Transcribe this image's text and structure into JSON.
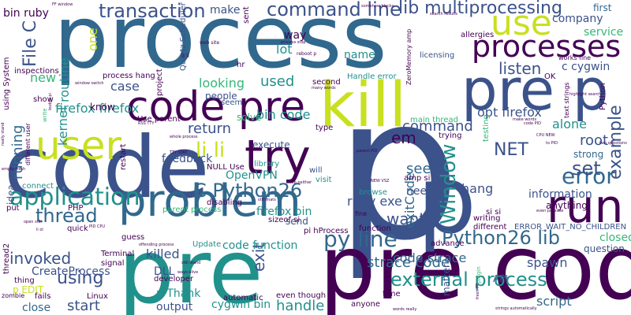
{
  "palette": {
    "dark_purple": "#440154",
    "indigo": "#3b528b",
    "steel_blue": "#31688e",
    "teal": "#21918c",
    "green": "#35b779",
    "light_green": "#5ec962",
    "lime": "#90d743",
    "yellow": "#c8e020"
  },
  "words": {
    "p_big": "p",
    "p_small": "p",
    "pre_code_br": "pre code",
    "pre_bottom": "pre",
    "process": "process",
    "code_left": "code",
    "problem": "problem",
    "run": "run",
    "kill": "kill",
    "pre_p": "pre p",
    "code_pre": "code pre",
    "user": "user",
    "try": "try",
    "processes": "processes",
    "use": "use",
    "error": "error",
    "application": "application",
    "python26_lib": "Python26 lib",
    "c_python26": "C Python26",
    "external_process": "external process",
    "transaction": "transaction",
    "command_line": "command line",
    "lib_multiprocessing": "lib multiprocessing",
    "li_li": "li li",
    "py_line": "py line",
    "strace_code": "strace code",
    "thread": "thread",
    "window": "Window",
    "listen": "listen",
    "set": "set",
    "example": "example",
    "root": "root",
    "file_c": "File C",
    "opt_firefox": "opt firefox",
    "firefox_firefox": "firefox firefox",
    "bin_code": "bin code",
    "command": "command",
    "em": "em",
    "using": "using",
    "invoked": "invoked",
    "handle": "handle",
    "script": "script",
    "closed": "closed",
    "killed": "killed",
    "start": "start",
    "net": "NET",
    "spawn": "spawn",
    "want": "want",
    "used": "used",
    "return": "return",
    "ruby_exe": "ruby exe",
    "firefox_bin": "firefox bin",
    "code_strace": "code strace",
    "kernel": "kernel",
    "routine": "routine",
    "running": "running",
    "new": "new",
    "case": "case",
    "looking": "looking",
    "alone": "alone",
    "c_cygwin": "c cygwin",
    "company": "company",
    "service": "service",
    "make": "make",
    "name": "name",
    "lot": "lot",
    "way": "way",
    "exit": "exit",
    "exitcode": "exitCode",
    "hang": "hang",
    "see": "see",
    "need": "need",
    "code_function": "code function",
    "createprocess": "CreateProcess",
    "bin_ruby": "bin ruby",
    "process_hang": "process hang",
    "one": "one",
    "information": "information",
    "question": "question",
    "anything": "anything",
    "error_wait": "ERROR_WAIT_NO_CHILDREN",
    "quartz_scheduler": "Quartz Scheduler",
    "dll": "DLL",
    "p_thank": "p Thank",
    "output": "output",
    "cygwin_bin": "cygwin bin",
    "openvpn": "OpenVPN",
    "feedback": "feedback",
    "execute": "execute",
    "solve": "solve",
    "people": "people",
    "seem": "seem",
    "know": "know",
    "show": "show",
    "idea": "idea",
    "put": "put",
    "quick": "quick",
    "guess": "guess",
    "terminal": "Terminal",
    "signal": "signal",
    "thing": "thing",
    "p_edit": "p EDIT",
    "close": "close",
    "fails": "fails",
    "linux": "Linux",
    "developer": "developer",
    "update": "Update",
    "automatic": "automatic",
    "even_though": "even though",
    "time": "time",
    "anyone": "anyone",
    "writing": "writing",
    "different": "different",
    "advance": "advance",
    "api": "API",
    "ok": "OK",
    "python": "Python",
    "handle_error": "Handle error",
    "main_thread": "main thread",
    "trying": "trying",
    "testing": "testing",
    "strong": "strong",
    "first": "first",
    "licensing": "licensing",
    "allergies": "allergies",
    "works_fine": "works fine",
    "text_strings": "text strings",
    "second": "second",
    "will": "will",
    "visit": "visit",
    "library": "library",
    "disabling": "disabling",
    "sizeof_si": "sizeof si",
    "send": "send",
    "function": "function",
    "pi_hprocess": "pi hProcess",
    "use_parent": "Use parent",
    "null_use": "NULL Use",
    "restart": "restart",
    "parent_process": "parent process",
    "hr": "hr",
    "project": "project",
    "sent": "sent",
    "inspections": "inspections",
    "using_system": "using System",
    "different_user": "different user",
    "php": "PHP",
    "thread2": "thread2",
    "zombie": "zombie",
    "matter": "matter",
    "amp_si": "amp si",
    "si_si": "si si",
    "type": "type",
    "fine": "fine",
    "browse": "browse",
    "zeromemory_amp": "ZeroMemory amp",
    "connect": "connect",
    "ttl_li": "li li",
    "ttl_rss": "RSS TTY",
    "ttl_words": "many words",
    "ttl_parent_pid": "parent PID",
    "ttl_reboot": "reboot p",
    "ttl_somehow": "somehow blocks",
    "ttl_search": "search results",
    "ttl_web": "web site",
    "ttl_empty": "empty fresh",
    "ttl_pid_cpu": "PID CPU",
    "ttl_strings": "strings automatically",
    "ttl_words_really": "words really",
    "ttl_make_words": "make words",
    "ttl_two_questions": "two questions",
    "ttl_even_possible": "even possible",
    "ttl_highlight": "highlight search",
    "ttl_still": "still stand",
    "ttl_whole": "whole process",
    "ttl_process_stop": "process stop",
    "ttl_tty_stat": "TTY STAT",
    "ttl_new_vsz": "NEW VSZ",
    "ttl_cpu_new": "CPU NEW",
    "ttl_code_pid": "code PID",
    "ttl_window_switch": "window switch",
    "ttl_offending": "offending process",
    "ttl_nib_neither": "nib neither",
    "ttl_still_mats": "still mats",
    "ttl_ff_window": "FF window",
    "ttl_open_still": "open still",
    "ttl_really_stand": "really stand",
    "ttl_ways_alive": "ways alive",
    "ttl_budge": "budge pi",
    "ttl_fresh": "fresh PF",
    "ttl_plugin": "plugin",
    "ttl_write": "write",
    "ttl_li_ol": "li ol",
    "ttl_pid_to": "to PID"
  }
}
